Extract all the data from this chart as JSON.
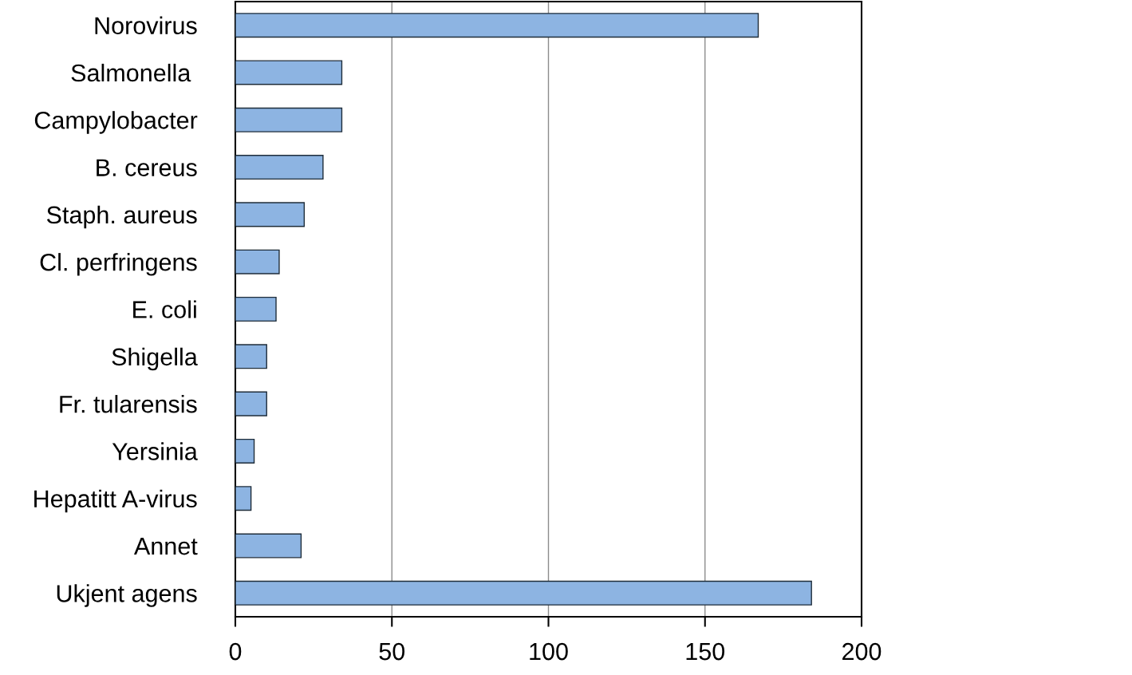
{
  "chart_data": {
    "type": "bar",
    "orientation": "horizontal",
    "categories": [
      "Norovirus",
      "Salmonella ",
      "Campylobacter",
      "B. cereus",
      "Staph. aureus",
      "Cl. perfringens",
      "E. coli",
      "Shigella",
      "Fr. tularensis",
      "Yersinia",
      "Hepatitt A-virus",
      "Annet",
      "Ukjent agens"
    ],
    "values": [
      167,
      34,
      34,
      28,
      22,
      14,
      13,
      10,
      10,
      6,
      5,
      21,
      184
    ],
    "color": "#8db4e2",
    "xlim": [
      0,
      200
    ],
    "xticks": [
      0,
      50,
      100,
      150,
      200
    ],
    "grid": "x"
  }
}
